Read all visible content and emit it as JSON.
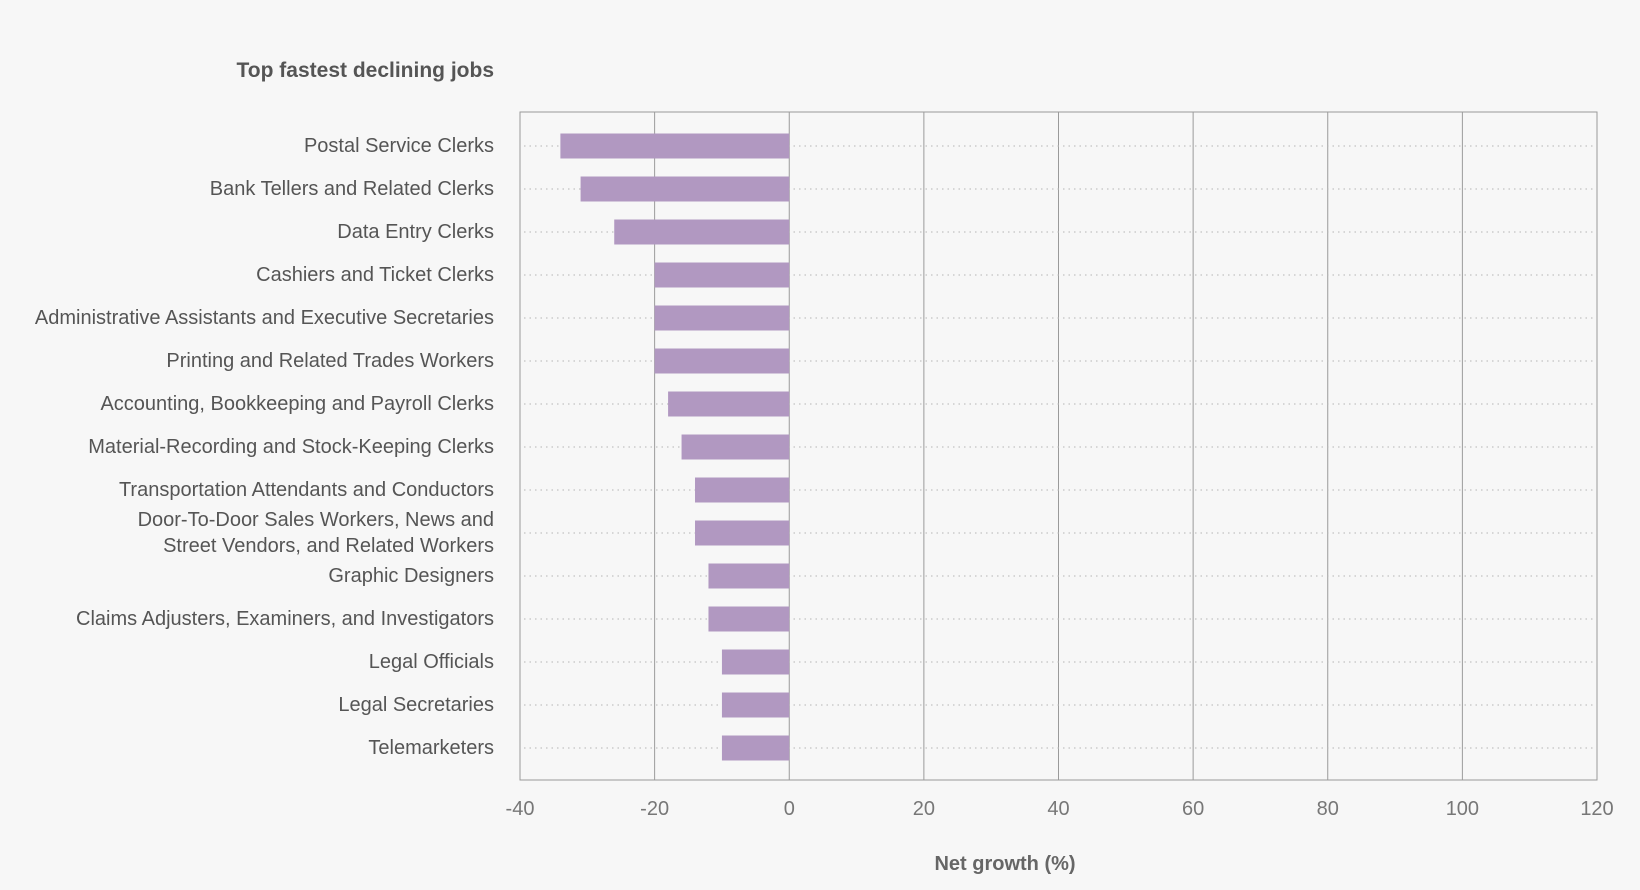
{
  "chart_data": {
    "type": "bar",
    "orientation": "horizontal",
    "title": "Top fastest declining jobs",
    "xlabel": "Net growth (%)",
    "xlim": [
      -40,
      120
    ],
    "xticks": [
      "-40",
      "-20",
      "0",
      "20",
      "40",
      "60",
      "80",
      "100",
      "120"
    ],
    "grid": true,
    "bar_color": "#b198c1",
    "categories": [
      "Postal Service Clerks",
      "Bank Tellers and Related Clerks",
      "Data Entry Clerks",
      "Cashiers and Ticket Clerks",
      "Administrative Assistants and Executive Secretaries",
      "Printing and Related Trades Workers",
      "Accounting, Bookkeeping and Payroll Clerks",
      "Material-Recording and Stock-Keeping Clerks",
      "Transportation Attendants and Conductors",
      "Door-To-Door Sales Workers, News and Street Vendors, and Related Workers",
      "Graphic Designers",
      "Claims Adjusters, Examiners, and Investigators",
      "Legal Officials",
      "Legal Secretaries",
      "Telemarketers"
    ],
    "values": [
      -34,
      -31,
      -26,
      -20,
      -20,
      -20,
      -18,
      -16,
      -14,
      -14,
      -12,
      -12,
      -10,
      -10,
      -10
    ]
  }
}
